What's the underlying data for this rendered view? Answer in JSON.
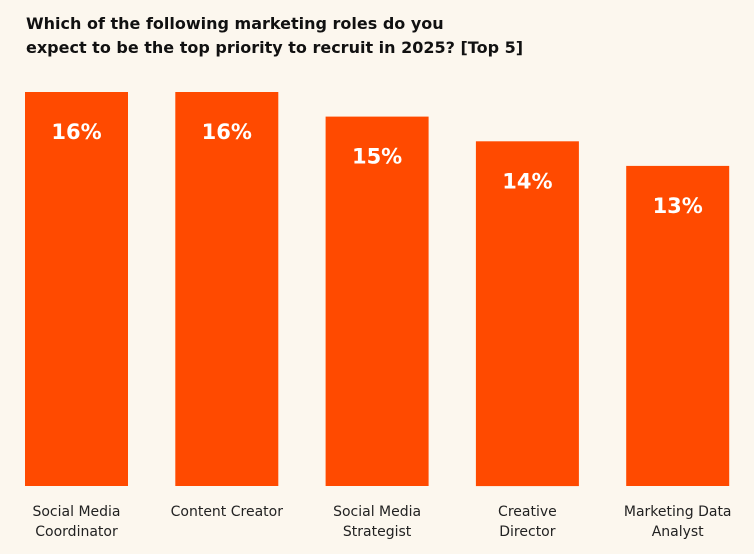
{
  "chart_data": {
    "type": "bar",
    "title_lines": [
      "Which of the following marketing roles do you",
      "expect to be the top priority to recruit in 2025? [Top 5]"
    ],
    "categories": [
      [
        "Social Media",
        "Coordinator"
      ],
      [
        "Content Creator"
      ],
      [
        "Social Media",
        "Strategist"
      ],
      [
        "Creative",
        "Director"
      ],
      [
        "Marketing Data",
        "Analyst"
      ]
    ],
    "values": [
      16,
      16,
      15,
      14,
      13
    ],
    "data_labels": [
      "16%",
      "16%",
      "15%",
      "14%",
      "13%"
    ],
    "unit": "%",
    "ylim": [
      0,
      16
    ],
    "grid": false,
    "legend": "none",
    "colors": {
      "bar": "#FF4A00",
      "background": "#FCF7EE",
      "title": "#111111",
      "label": "#222222",
      "value_text": "#FFFFFF"
    }
  }
}
